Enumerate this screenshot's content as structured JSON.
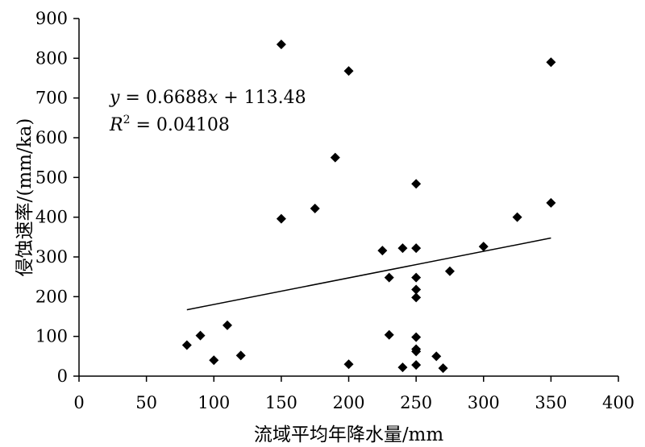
{
  "chart_data": {
    "type": "scatter",
    "xlabel": "流域平均年降水量/mm",
    "ylabel": "侵蚀速率/(mm/ka)",
    "xlim": [
      0,
      400
    ],
    "ylim": [
      0,
      900
    ],
    "xticks": [
      0,
      50,
      100,
      150,
      200,
      250,
      300,
      350,
      400
    ],
    "yticks": [
      0,
      100,
      200,
      300,
      400,
      500,
      600,
      700,
      800,
      900
    ],
    "grid": false,
    "points": [
      {
        "x": 80,
        "y": 78
      },
      {
        "x": 90,
        "y": 102
      },
      {
        "x": 100,
        "y": 40
      },
      {
        "x": 110,
        "y": 128
      },
      {
        "x": 120,
        "y": 52
      },
      {
        "x": 150,
        "y": 835
      },
      {
        "x": 150,
        "y": 396
      },
      {
        "x": 175,
        "y": 422
      },
      {
        "x": 190,
        "y": 550
      },
      {
        "x": 200,
        "y": 768
      },
      {
        "x": 200,
        "y": 30
      },
      {
        "x": 225,
        "y": 316
      },
      {
        "x": 230,
        "y": 248
      },
      {
        "x": 230,
        "y": 104
      },
      {
        "x": 240,
        "y": 322
      },
      {
        "x": 240,
        "y": 22
      },
      {
        "x": 250,
        "y": 484
      },
      {
        "x": 250,
        "y": 322
      },
      {
        "x": 250,
        "y": 248
      },
      {
        "x": 250,
        "y": 218
      },
      {
        "x": 250,
        "y": 198
      },
      {
        "x": 250,
        "y": 98
      },
      {
        "x": 250,
        "y": 68
      },
      {
        "x": 250,
        "y": 62
      },
      {
        "x": 250,
        "y": 28
      },
      {
        "x": 265,
        "y": 50
      },
      {
        "x": 270,
        "y": 20
      },
      {
        "x": 275,
        "y": 264
      },
      {
        "x": 300,
        "y": 326
      },
      {
        "x": 325,
        "y": 400
      },
      {
        "x": 350,
        "y": 790
      },
      {
        "x": 350,
        "y": 436
      }
    ],
    "trendline": {
      "slope": 0.6688,
      "intercept": 113.48,
      "x_range": [
        80,
        350
      ]
    },
    "annotations": {
      "equation_y": "y",
      "equation_eq": " = 0.6688",
      "equation_x": "x",
      "equation_rest": " + 113.48",
      "r2_label": "R",
      "r2_sup": "2",
      "r2_value": " = 0.04108"
    }
  }
}
